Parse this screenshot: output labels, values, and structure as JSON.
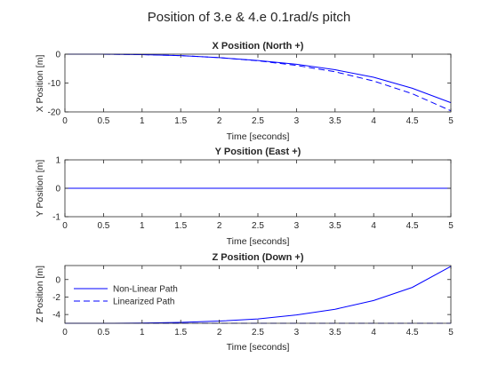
{
  "figure": {
    "title": "Position of 3.e & 4.e 0.1rad/s pitch"
  },
  "colors": {
    "line": "#0000ff",
    "axis": "#262626",
    "background": "#ffffff"
  },
  "chart_data": [
    {
      "type": "line",
      "title": "X Position (North +)",
      "xlabel": "Time [seconds]",
      "ylabel": "X Position [m]",
      "xlim": [
        0,
        5
      ],
      "ylim": [
        -20,
        0
      ],
      "xticks": [
        "0",
        "0.5",
        "1",
        "1.5",
        "2",
        "2.5",
        "3",
        "3.5",
        "4",
        "4.5",
        "5"
      ],
      "yticks": [
        "0",
        "-10",
        "-20"
      ],
      "x": [
        0,
        0.5,
        1,
        1.5,
        2,
        2.5,
        3,
        3.5,
        4,
        4.5,
        5
      ],
      "series": [
        {
          "values": [
            0,
            -0.02,
            -0.15,
            -0.5,
            -1.2,
            -2.2,
            -3.5,
            -5.4,
            -8.0,
            -11.8,
            -16.8
          ],
          "style": "solid"
        },
        {
          "values": [
            0,
            -0.02,
            -0.15,
            -0.5,
            -1.2,
            -2.3,
            -3.9,
            -6.1,
            -9.3,
            -13.7,
            -19.6
          ],
          "style": "dashed"
        }
      ],
      "grid": false,
      "legend": null
    },
    {
      "type": "line",
      "title": "Y Position (East +)",
      "xlabel": "Time [seconds]",
      "ylabel": "Y Position [m]",
      "xlim": [
        0,
        5
      ],
      "ylim": [
        -1,
        1
      ],
      "xticks": [
        "0",
        "0.5",
        "1",
        "1.5",
        "2",
        "2.5",
        "3",
        "3.5",
        "4",
        "4.5",
        "5"
      ],
      "yticks": [
        "1",
        "0",
        "-1"
      ],
      "x": [
        0,
        5
      ],
      "series": [
        {
          "values": [
            0,
            0
          ],
          "style": "solid"
        },
        {
          "values": [
            0,
            0
          ],
          "style": "dashed"
        }
      ],
      "grid": false,
      "legend": null
    },
    {
      "type": "line",
      "title": "Z Position (Down +)",
      "xlabel": "Time [seconds]",
      "ylabel": "Z Position [m]",
      "xlim": [
        0,
        5
      ],
      "ylim": [
        -5,
        1.6
      ],
      "xticks": [
        "0",
        "0.5",
        "1",
        "1.5",
        "2",
        "2.5",
        "3",
        "3.5",
        "4",
        "4.5",
        "5"
      ],
      "yticks": [
        "0",
        "-2",
        "-4"
      ],
      "x": [
        0,
        0.5,
        1,
        1.5,
        2,
        2.5,
        3,
        3.5,
        4,
        4.5,
        5
      ],
      "series": [
        {
          "name": "Non-Linear Path",
          "values": [
            -5,
            -5,
            -4.98,
            -4.9,
            -4.75,
            -4.5,
            -4.05,
            -3.4,
            -2.4,
            -0.9,
            1.5
          ],
          "style": "solid"
        },
        {
          "name": "Linearized Path",
          "values": [
            -5,
            -5,
            -5,
            -5,
            -5,
            -5,
            -5,
            -5,
            -5,
            -5,
            -5
          ],
          "style": "dashed"
        }
      ],
      "grid": false,
      "legend": "upper-left"
    }
  ]
}
